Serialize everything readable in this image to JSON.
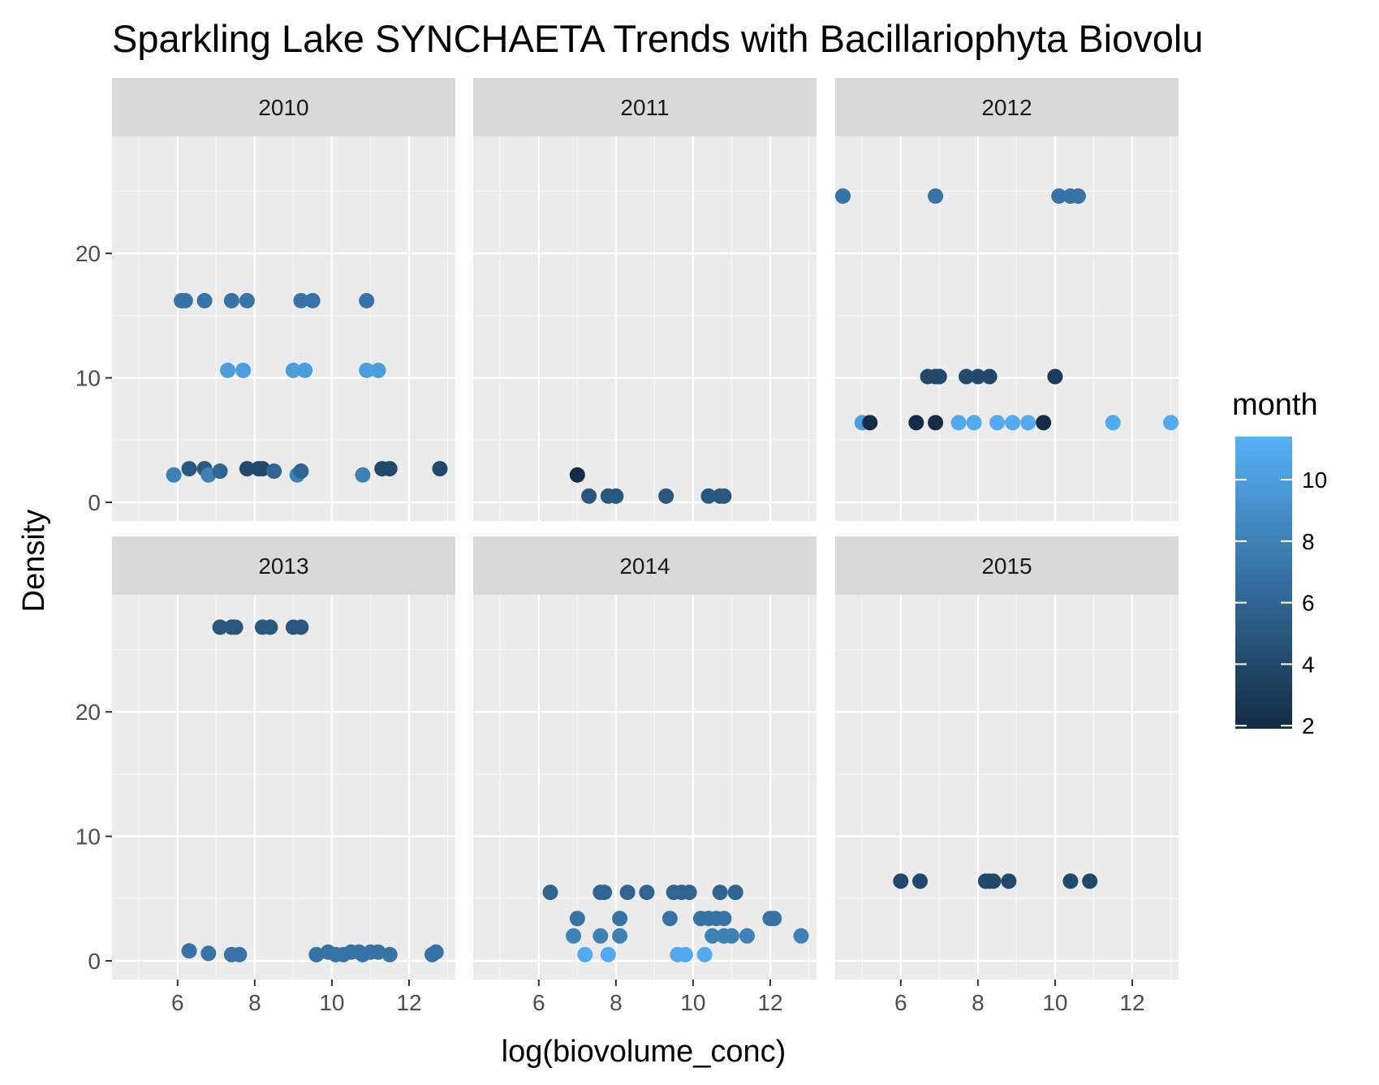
{
  "chart_data": {
    "type": "scatter",
    "title": "Sparkling Lake SYNCHAETA Trends with Bacillariophyta Biovolu",
    "xlabel": "log(biovolume_conc)",
    "ylabel": "Density",
    "xlim": [
      4.3,
      13.2
    ],
    "ylim": [
      -1.5,
      29.4
    ],
    "x_ticks": [
      6,
      8,
      10,
      12
    ],
    "y_ticks": [
      0,
      10,
      20
    ],
    "grid": true,
    "legend": {
      "title": "month",
      "position": "right",
      "type": "colorbar",
      "range": [
        1.9,
        11.4
      ],
      "ticks": [
        2,
        4,
        6,
        8,
        10
      ],
      "low_color": "#132B43",
      "high_color": "#56B1F7"
    },
    "panels": [
      {
        "label": "2010",
        "points": [
          {
            "x": 6.1,
            "y": 16.2,
            "month": 7
          },
          {
            "x": 6.2,
            "y": 16.2,
            "month": 7
          },
          {
            "x": 6.7,
            "y": 16.2,
            "month": 7
          },
          {
            "x": 7.4,
            "y": 16.2,
            "month": 7
          },
          {
            "x": 7.8,
            "y": 16.2,
            "month": 7
          },
          {
            "x": 9.2,
            "y": 16.2,
            "month": 7
          },
          {
            "x": 9.5,
            "y": 16.2,
            "month": 7
          },
          {
            "x": 10.9,
            "y": 16.2,
            "month": 7
          },
          {
            "x": 7.3,
            "y": 10.6,
            "month": 10
          },
          {
            "x": 7.7,
            "y": 10.6,
            "month": 10
          },
          {
            "x": 9.0,
            "y": 10.6,
            "month": 10
          },
          {
            "x": 9.3,
            "y": 10.6,
            "month": 10
          },
          {
            "x": 10.9,
            "y": 10.6,
            "month": 10
          },
          {
            "x": 11.2,
            "y": 10.6,
            "month": 10
          },
          {
            "x": 5.9,
            "y": 2.2,
            "month": 8
          },
          {
            "x": 6.3,
            "y": 2.7,
            "month": 5
          },
          {
            "x": 6.7,
            "y": 2.7,
            "month": 5
          },
          {
            "x": 6.8,
            "y": 2.2,
            "month": 8
          },
          {
            "x": 7.1,
            "y": 2.5,
            "month": 6
          },
          {
            "x": 7.8,
            "y": 2.7,
            "month": 4
          },
          {
            "x": 8.1,
            "y": 2.7,
            "month": 4
          },
          {
            "x": 8.2,
            "y": 2.7,
            "month": 4
          },
          {
            "x": 8.5,
            "y": 2.5,
            "month": 6
          },
          {
            "x": 9.1,
            "y": 2.2,
            "month": 8
          },
          {
            "x": 9.2,
            "y": 2.5,
            "month": 6
          },
          {
            "x": 10.8,
            "y": 2.2,
            "month": 8
          },
          {
            "x": 11.3,
            "y": 2.7,
            "month": 4
          },
          {
            "x": 11.5,
            "y": 2.7,
            "month": 4
          },
          {
            "x": 12.8,
            "y": 2.7,
            "month": 4
          }
        ]
      },
      {
        "label": "2011",
        "points": [
          {
            "x": 7.0,
            "y": 2.2,
            "month": 2
          },
          {
            "x": 7.3,
            "y": 0.5,
            "month": 5
          },
          {
            "x": 7.8,
            "y": 0.5,
            "month": 5
          },
          {
            "x": 8.0,
            "y": 0.5,
            "month": 5
          },
          {
            "x": 9.3,
            "y": 0.5,
            "month": 5
          },
          {
            "x": 10.4,
            "y": 0.5,
            "month": 5
          },
          {
            "x": 10.7,
            "y": 0.5,
            "month": 5
          },
          {
            "x": 10.8,
            "y": 0.5,
            "month": 5
          }
        ]
      },
      {
        "label": "2012",
        "points": [
          {
            "x": 4.5,
            "y": 24.6,
            "month": 7
          },
          {
            "x": 6.9,
            "y": 24.6,
            "month": 7
          },
          {
            "x": 10.1,
            "y": 24.6,
            "month": 7
          },
          {
            "x": 10.4,
            "y": 24.6,
            "month": 7
          },
          {
            "x": 10.6,
            "y": 24.6,
            "month": 7
          },
          {
            "x": 6.7,
            "y": 10.1,
            "month": 4
          },
          {
            "x": 6.9,
            "y": 10.1,
            "month": 4
          },
          {
            "x": 7.0,
            "y": 10.1,
            "month": 4
          },
          {
            "x": 7.7,
            "y": 10.1,
            "month": 4
          },
          {
            "x": 8.0,
            "y": 10.1,
            "month": 4
          },
          {
            "x": 8.3,
            "y": 10.1,
            "month": 4
          },
          {
            "x": 10.0,
            "y": 10.1,
            "month": 3
          },
          {
            "x": 5.0,
            "y": 6.4,
            "month": 10
          },
          {
            "x": 5.2,
            "y": 6.4,
            "month": 2
          },
          {
            "x": 6.4,
            "y": 6.4,
            "month": 2
          },
          {
            "x": 6.9,
            "y": 6.4,
            "month": 2
          },
          {
            "x": 7.5,
            "y": 6.4,
            "month": 11
          },
          {
            "x": 7.9,
            "y": 6.4,
            "month": 11
          },
          {
            "x": 8.5,
            "y": 6.4,
            "month": 11
          },
          {
            "x": 8.9,
            "y": 6.4,
            "month": 11
          },
          {
            "x": 9.3,
            "y": 6.4,
            "month": 11
          },
          {
            "x": 9.7,
            "y": 6.4,
            "month": 2
          },
          {
            "x": 11.5,
            "y": 6.4,
            "month": 11
          },
          {
            "x": 13.0,
            "y": 6.4,
            "month": 11
          }
        ]
      },
      {
        "label": "2013",
        "points": [
          {
            "x": 7.1,
            "y": 26.8,
            "month": 5
          },
          {
            "x": 7.4,
            "y": 26.8,
            "month": 5
          },
          {
            "x": 7.5,
            "y": 26.8,
            "month": 5
          },
          {
            "x": 8.2,
            "y": 26.8,
            "month": 5
          },
          {
            "x": 8.4,
            "y": 26.8,
            "month": 5
          },
          {
            "x": 9.0,
            "y": 26.8,
            "month": 5
          },
          {
            "x": 9.2,
            "y": 26.8,
            "month": 5
          },
          {
            "x": 6.3,
            "y": 0.8,
            "month": 7
          },
          {
            "x": 6.8,
            "y": 0.6,
            "month": 7
          },
          {
            "x": 7.4,
            "y": 0.5,
            "month": 7
          },
          {
            "x": 7.6,
            "y": 0.5,
            "month": 7
          },
          {
            "x": 9.6,
            "y": 0.5,
            "month": 7
          },
          {
            "x": 9.9,
            "y": 0.7,
            "month": 7
          },
          {
            "x": 10.1,
            "y": 0.5,
            "month": 7
          },
          {
            "x": 10.3,
            "y": 0.5,
            "month": 7
          },
          {
            "x": 10.5,
            "y": 0.7,
            "month": 7
          },
          {
            "x": 10.7,
            "y": 0.7,
            "month": 7
          },
          {
            "x": 10.8,
            "y": 0.5,
            "month": 7
          },
          {
            "x": 11.0,
            "y": 0.7,
            "month": 7
          },
          {
            "x": 11.2,
            "y": 0.7,
            "month": 7
          },
          {
            "x": 11.5,
            "y": 0.5,
            "month": 7
          },
          {
            "x": 12.6,
            "y": 0.5,
            "month": 7
          },
          {
            "x": 12.7,
            "y": 0.7,
            "month": 7
          }
        ]
      },
      {
        "label": "2014",
        "points": [
          {
            "x": 6.3,
            "y": 5.5,
            "month": 6
          },
          {
            "x": 7.6,
            "y": 5.5,
            "month": 6
          },
          {
            "x": 7.7,
            "y": 5.5,
            "month": 6
          },
          {
            "x": 8.3,
            "y": 5.5,
            "month": 6
          },
          {
            "x": 8.8,
            "y": 5.5,
            "month": 6
          },
          {
            "x": 9.5,
            "y": 5.5,
            "month": 6
          },
          {
            "x": 9.7,
            "y": 5.5,
            "month": 6
          },
          {
            "x": 9.9,
            "y": 5.5,
            "month": 6
          },
          {
            "x": 10.7,
            "y": 5.5,
            "month": 6
          },
          {
            "x": 11.1,
            "y": 5.5,
            "month": 6
          },
          {
            "x": 7.0,
            "y": 3.4,
            "month": 7
          },
          {
            "x": 8.1,
            "y": 3.4,
            "month": 7
          },
          {
            "x": 9.4,
            "y": 3.4,
            "month": 7
          },
          {
            "x": 10.2,
            "y": 3.4,
            "month": 7
          },
          {
            "x": 10.4,
            "y": 3.4,
            "month": 7
          },
          {
            "x": 10.6,
            "y": 3.4,
            "month": 7
          },
          {
            "x": 10.8,
            "y": 3.4,
            "month": 7
          },
          {
            "x": 12.0,
            "y": 3.4,
            "month": 7
          },
          {
            "x": 12.1,
            "y": 3.4,
            "month": 7
          },
          {
            "x": 6.9,
            "y": 2.0,
            "month": 8
          },
          {
            "x": 7.6,
            "y": 2.0,
            "month": 8
          },
          {
            "x": 8.1,
            "y": 2.0,
            "month": 8
          },
          {
            "x": 10.5,
            "y": 2.0,
            "month": 8
          },
          {
            "x": 10.8,
            "y": 2.0,
            "month": 8
          },
          {
            "x": 11.0,
            "y": 2.0,
            "month": 8
          },
          {
            "x": 11.4,
            "y": 2.0,
            "month": 8
          },
          {
            "x": 12.8,
            "y": 2.0,
            "month": 8
          },
          {
            "x": 7.2,
            "y": 0.5,
            "month": 11
          },
          {
            "x": 7.8,
            "y": 0.5,
            "month": 11
          },
          {
            "x": 9.6,
            "y": 0.5,
            "month": 11
          },
          {
            "x": 9.8,
            "y": 0.5,
            "month": 11
          },
          {
            "x": 10.3,
            "y": 0.5,
            "month": 11
          }
        ]
      },
      {
        "label": "2015",
        "points": [
          {
            "x": 6.0,
            "y": 6.4,
            "month": 4
          },
          {
            "x": 6.5,
            "y": 6.4,
            "month": 4
          },
          {
            "x": 8.2,
            "y": 6.4,
            "month": 4
          },
          {
            "x": 8.3,
            "y": 6.4,
            "month": 4
          },
          {
            "x": 8.4,
            "y": 6.4,
            "month": 4
          },
          {
            "x": 8.8,
            "y": 6.4,
            "month": 4
          },
          {
            "x": 10.4,
            "y": 6.4,
            "month": 4
          },
          {
            "x": 10.9,
            "y": 6.4,
            "month": 4
          }
        ]
      }
    ]
  }
}
